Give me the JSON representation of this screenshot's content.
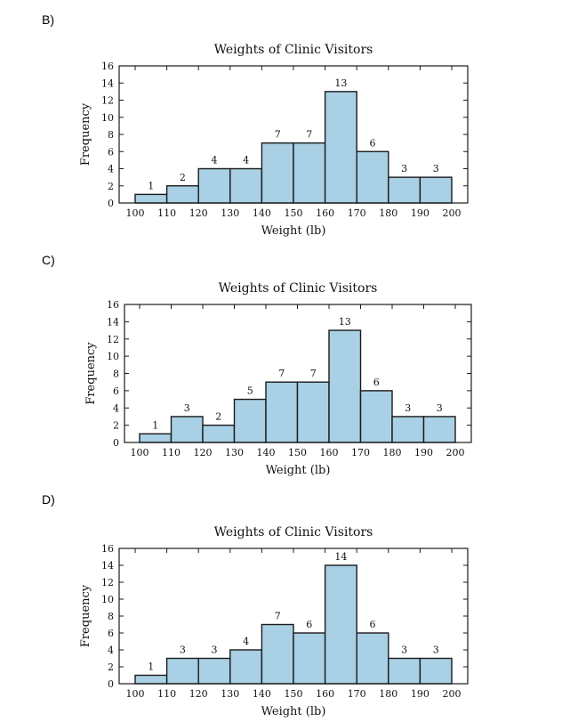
{
  "options": [
    {
      "label": "B)"
    },
    {
      "label": "C)"
    },
    {
      "label": "D)"
    }
  ],
  "chart_data": [
    {
      "type": "bar",
      "title": "Weights of Clinic Visitors",
      "xlabel": "Weight (lb)",
      "ylabel": "Frequency",
      "bins": [
        [
          100,
          110
        ],
        [
          110,
          120
        ],
        [
          120,
          130
        ],
        [
          130,
          140
        ],
        [
          140,
          150
        ],
        [
          150,
          160
        ],
        [
          160,
          170
        ],
        [
          170,
          180
        ],
        [
          180,
          190
        ],
        [
          190,
          200
        ]
      ],
      "values": [
        1,
        2,
        4,
        4,
        7,
        7,
        13,
        6,
        3,
        3
      ],
      "xticks": [
        100,
        110,
        120,
        130,
        140,
        150,
        160,
        170,
        180,
        190,
        200
      ],
      "yticks": [
        0,
        2,
        4,
        6,
        8,
        10,
        12,
        14,
        16
      ],
      "xlim": [
        100,
        200
      ],
      "ylim": [
        0,
        16
      ]
    },
    {
      "type": "bar",
      "title": "Weights of Clinic Visitors",
      "xlabel": "Weight (lb)",
      "ylabel": "Frequency",
      "bins": [
        [
          100,
          110
        ],
        [
          110,
          120
        ],
        [
          120,
          130
        ],
        [
          130,
          140
        ],
        [
          140,
          150
        ],
        [
          150,
          160
        ],
        [
          160,
          170
        ],
        [
          170,
          180
        ],
        [
          180,
          190
        ],
        [
          190,
          200
        ]
      ],
      "values": [
        1,
        3,
        2,
        5,
        7,
        7,
        13,
        6,
        3,
        3
      ],
      "xticks": [
        100,
        110,
        120,
        130,
        140,
        150,
        160,
        170,
        180,
        190,
        200
      ],
      "yticks": [
        0,
        2,
        4,
        6,
        8,
        10,
        12,
        14,
        16
      ],
      "xlim": [
        100,
        200
      ],
      "ylim": [
        0,
        16
      ]
    },
    {
      "type": "bar",
      "title": "Weights of Clinic Visitors",
      "xlabel": "Weight (lb)",
      "ylabel": "Frequency",
      "bins": [
        [
          100,
          110
        ],
        [
          110,
          120
        ],
        [
          120,
          130
        ],
        [
          130,
          140
        ],
        [
          140,
          150
        ],
        [
          150,
          160
        ],
        [
          160,
          170
        ],
        [
          170,
          180
        ],
        [
          180,
          190
        ],
        [
          190,
          200
        ]
      ],
      "values": [
        1,
        3,
        3,
        4,
        7,
        6,
        14,
        6,
        3,
        3
      ],
      "xticks": [
        100,
        110,
        120,
        130,
        140,
        150,
        160,
        170,
        180,
        190,
        200
      ],
      "yticks": [
        0,
        2,
        4,
        6,
        8,
        10,
        12,
        14,
        16
      ],
      "xlim": [
        100,
        200
      ],
      "ylim": [
        0,
        16
      ]
    }
  ]
}
